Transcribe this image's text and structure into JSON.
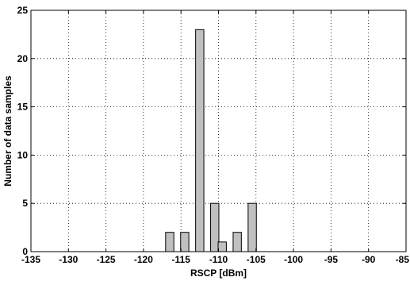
{
  "chart_data": {
    "type": "bar",
    "title": "",
    "xlabel": "RSCP [dBm]",
    "ylabel": "Number of data samples",
    "xlim": [
      -135,
      -85
    ],
    "ylim": [
      0,
      25
    ],
    "xticks": [
      -135,
      -130,
      -125,
      -120,
      -115,
      -110,
      -105,
      -100,
      -95,
      -90,
      -85
    ],
    "yticks": [
      0,
      5,
      10,
      15,
      20,
      25
    ],
    "grid": true,
    "bar_width": 1.1,
    "bar_color": "#c0c0c0",
    "bars": [
      {
        "x": -116.5,
        "value": 2
      },
      {
        "x": -114.5,
        "value": 2
      },
      {
        "x": -112.5,
        "value": 23
      },
      {
        "x": -110.5,
        "value": 5
      },
      {
        "x": -109.5,
        "value": 1
      },
      {
        "x": -107.5,
        "value": 2
      },
      {
        "x": -105.5,
        "value": 5
      }
    ]
  }
}
